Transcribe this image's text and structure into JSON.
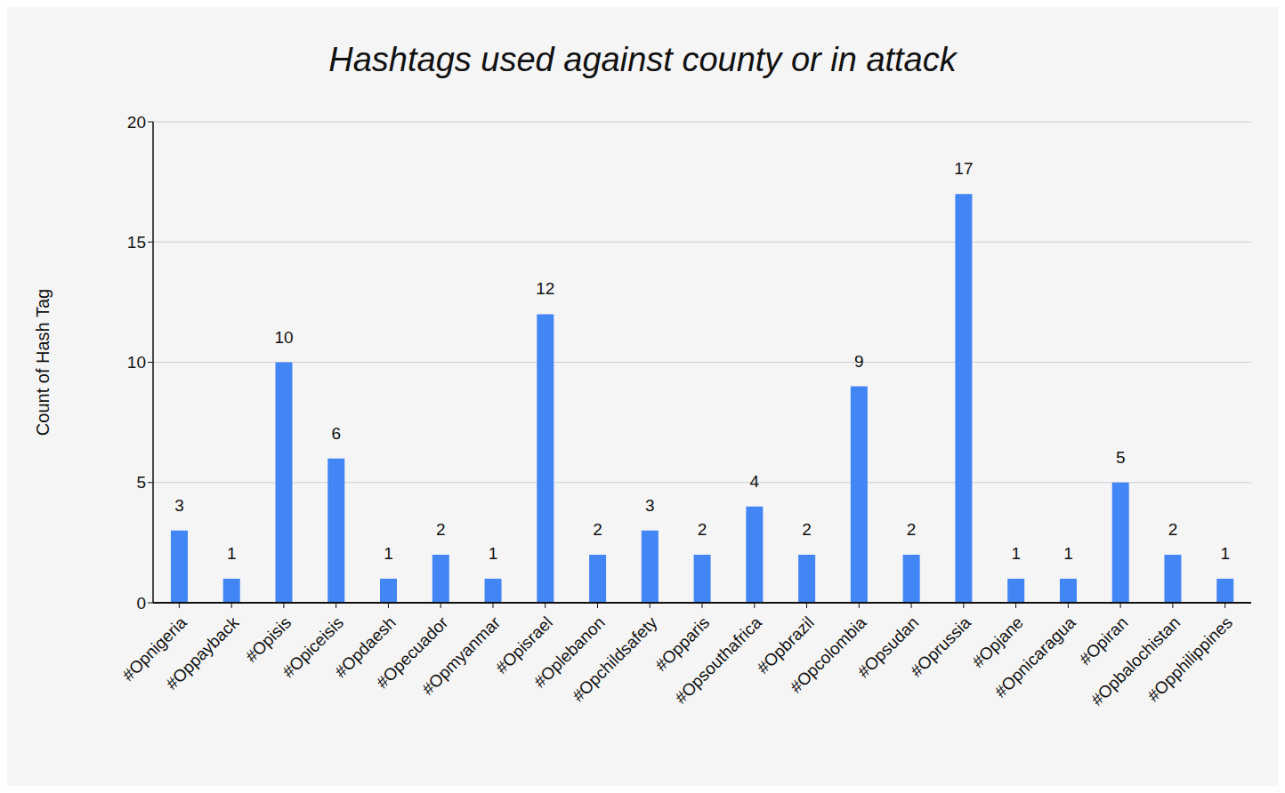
{
  "chart_data": {
    "type": "bar",
    "title": "Hashtags used against county or in attack",
    "y_label": "Count of Hash Tag",
    "categories": [
      "#Opnigeria",
      "#Oppayback",
      "#Opisis",
      "#Opiceisis",
      "#Opdaesh",
      "#Opecuador",
      "#Opmyanmar",
      "#Opisrael",
      "#Oplebanon",
      "#Opchildsafety",
      "#Opparis",
      "#Opsouthafrica",
      "#Opbrazil",
      "#Opcolombia",
      "#Opsudan",
      "#Oprussia",
      "#Opjane",
      "#Opnicaragua",
      "#Opiran",
      "#Opbalochistan",
      "#Opphilippines"
    ],
    "values": [
      3,
      1,
      10,
      6,
      1,
      2,
      1,
      12,
      2,
      3,
      2,
      4,
      2,
      9,
      2,
      17,
      1,
      1,
      5,
      2,
      1
    ],
    "color": "#4285f4",
    "ylim": [
      0,
      20
    ],
    "yticks": [
      0,
      5,
      10,
      15,
      20
    ],
    "grid": true,
    "data_labels": true
  }
}
